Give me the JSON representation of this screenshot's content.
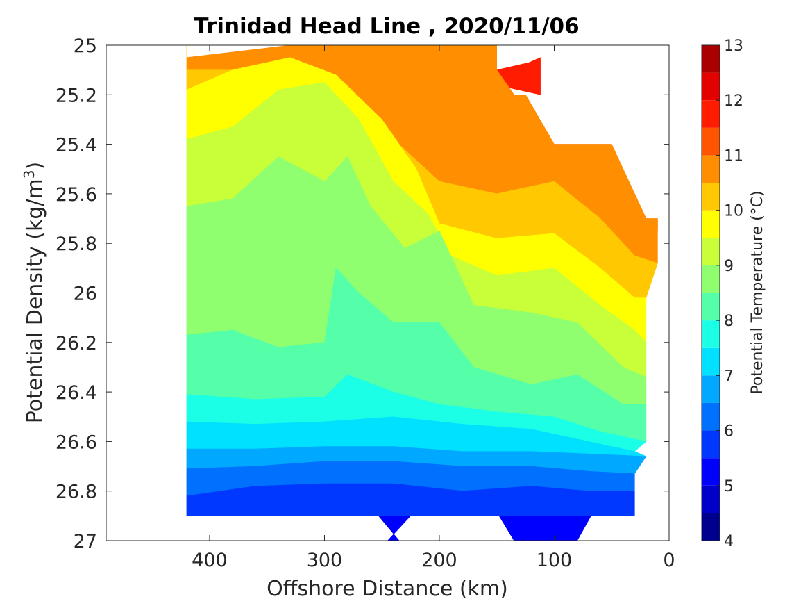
{
  "chart_data": {
    "type": "contour",
    "title": "Trinidad Head Line , 2020/11/06",
    "xlabel": "Offshore Distance (km)",
    "ylabel_main": "Potential Density (kg/m",
    "ylabel_sup": "3",
    "ylabel_close": ")",
    "xlim": [
      490,
      0
    ],
    "ylim": [
      25,
      27
    ],
    "x_direction": "reversed",
    "y_direction": "reversed",
    "xticks": [
      400,
      300,
      200,
      100,
      0
    ],
    "yticks": [
      25,
      25.2,
      25.4,
      25.6,
      25.8,
      26,
      26.2,
      26.4,
      26.6,
      26.8,
      27
    ],
    "xtick_labels": [
      "400",
      "300",
      "200",
      "100",
      "0"
    ],
    "ytick_labels": [
      "25",
      "25.2",
      "25.4",
      "25.6",
      "25.8",
      "26",
      "26.2",
      "26.4",
      "26.6",
      "26.8",
      "27"
    ],
    "grid": false,
    "colorbar": {
      "label": "Potential Temperature (°C)",
      "levels": [
        4,
        4.5,
        5,
        5.5,
        6,
        6.5,
        7,
        7.5,
        8,
        8.5,
        9,
        9.5,
        10,
        10.5,
        11,
        11.5,
        12,
        12.5,
        13
      ],
      "tick_values": [
        4,
        5,
        6,
        7,
        8,
        9,
        10,
        11,
        12,
        13
      ],
      "tick_labels": [
        "4",
        "5",
        "6",
        "7",
        "8",
        "9",
        "10",
        "11",
        "12",
        "13"
      ],
      "colors": [
        "#00008F",
        "#0000C8",
        "#0000FF",
        "#0038FF",
        "#0070FF",
        "#00A8FF",
        "#00E0FF",
        "#1AFFE5",
        "#55FFAA",
        "#8FFF70",
        "#C8FF38",
        "#FFFF00",
        "#FFC800",
        "#FF8F00",
        "#FF5500",
        "#FF1C00",
        "#E30000",
        "#AA0000"
      ]
    },
    "bands": [
      {
        "level_min": 12.0,
        "color": "#E30000",
        "boundary": [
          [
            188,
            25
          ],
          [
            150,
            25
          ],
          [
            150,
            25.1
          ],
          [
            172,
            25.07
          ]
        ]
      },
      {
        "level_min": 11.5,
        "color": "#FF1C00",
        "boundary": [
          [
            205,
            25
          ],
          [
            150,
            25
          ],
          [
            150,
            25.1
          ],
          [
            122,
            25.07
          ],
          [
            112,
            25.05
          ],
          [
            112,
            25.2
          ],
          [
            180,
            25.13
          ]
        ]
      },
      {
        "level_min": 11.0,
        "color": "#FF5500",
        "boundary": [
          [
            258,
            25
          ],
          [
            150,
            25
          ],
          [
            150,
            25.1
          ],
          [
            135,
            25.2
          ],
          [
            125,
            25.2
          ],
          [
            100,
            25.4
          ],
          [
            50,
            25.4
          ],
          [
            20,
            25.7
          ],
          [
            10,
            25.7
          ],
          [
            10,
            25.75
          ],
          [
            30,
            25.75
          ],
          [
            60,
            25.6
          ],
          [
            110,
            25.5
          ],
          [
            160,
            25.4
          ],
          [
            200,
            25.32
          ],
          [
            230,
            25.2
          ]
        ]
      },
      {
        "level_min": 10.5,
        "color": "#FF8F00",
        "boundary": [
          [
            330,
            25
          ],
          [
            420,
            25.05
          ],
          [
            420,
            25.1
          ],
          [
            370,
            25.1
          ],
          [
            320,
            25.15
          ],
          [
            280,
            25.25
          ],
          [
            240,
            25.38
          ],
          [
            200,
            25.55
          ],
          [
            150,
            25.6
          ],
          [
            100,
            25.55
          ],
          [
            60,
            25.7
          ],
          [
            30,
            25.85
          ],
          [
            10,
            25.88
          ],
          [
            10,
            25.7
          ],
          [
            20,
            25.7
          ],
          [
            50,
            25.4
          ],
          [
            100,
            25.4
          ],
          [
            125,
            25.2
          ],
          [
            135,
            25.2
          ],
          [
            150,
            25.1
          ],
          [
            150,
            25
          ],
          [
            258,
            25
          ]
        ]
      },
      {
        "level_min": 10.0,
        "color": "#FFC800",
        "boundary": [
          [
            420,
            25
          ],
          [
            420,
            25.18
          ],
          [
            380,
            25.1
          ],
          [
            330,
            25.05
          ],
          [
            290,
            25.12
          ],
          [
            250,
            25.3
          ],
          [
            220,
            25.5
          ],
          [
            200,
            25.72
          ],
          [
            150,
            25.78
          ],
          [
            100,
            25.76
          ],
          [
            60,
            25.9
          ],
          [
            30,
            26.02
          ],
          [
            20,
            26.02
          ],
          [
            10,
            25.88
          ],
          [
            30,
            25.85
          ],
          [
            60,
            25.7
          ],
          [
            100,
            25.55
          ],
          [
            150,
            25.6
          ],
          [
            200,
            25.55
          ],
          [
            240,
            25.38
          ],
          [
            280,
            25.25
          ],
          [
            320,
            25.15
          ],
          [
            370,
            25.1
          ],
          [
            420,
            25.1
          ]
        ]
      },
      {
        "level_min": 9.5,
        "color": "#FFFF00",
        "boundary": [
          [
            420,
            25.18
          ],
          [
            420,
            25.38
          ],
          [
            380,
            25.33
          ],
          [
            340,
            25.18
          ],
          [
            300,
            25.15
          ],
          [
            270,
            25.3
          ],
          [
            240,
            25.55
          ],
          [
            210,
            25.68
          ],
          [
            190,
            25.85
          ],
          [
            150,
            25.93
          ],
          [
            100,
            25.9
          ],
          [
            60,
            26.05
          ],
          [
            30,
            26.15
          ],
          [
            20,
            26.2
          ],
          [
            20,
            26.02
          ],
          [
            30,
            26.02
          ],
          [
            60,
            25.9
          ],
          [
            100,
            25.76
          ],
          [
            150,
            25.78
          ],
          [
            200,
            25.72
          ],
          [
            220,
            25.5
          ],
          [
            250,
            25.3
          ],
          [
            290,
            25.12
          ],
          [
            330,
            25.05
          ],
          [
            380,
            25.1
          ]
        ]
      },
      {
        "level_min": 9.0,
        "color": "#C8FF38",
        "boundary": [
          [
            420,
            25.38
          ],
          [
            420,
            25.65
          ],
          [
            380,
            25.62
          ],
          [
            340,
            25.45
          ],
          [
            300,
            25.55
          ],
          [
            280,
            25.45
          ],
          [
            260,
            25.65
          ],
          [
            230,
            25.82
          ],
          [
            200,
            25.75
          ],
          [
            170,
            26.05
          ],
          [
            120,
            26.08
          ],
          [
            80,
            26.12
          ],
          [
            40,
            26.3
          ],
          [
            20,
            26.34
          ],
          [
            20,
            26.2
          ],
          [
            30,
            26.15
          ],
          [
            60,
            26.05
          ],
          [
            100,
            25.9
          ],
          [
            150,
            25.93
          ],
          [
            190,
            25.85
          ],
          [
            210,
            25.68
          ],
          [
            240,
            25.55
          ],
          [
            270,
            25.3
          ],
          [
            300,
            25.15
          ],
          [
            340,
            25.18
          ],
          [
            380,
            25.33
          ]
        ]
      },
      {
        "level_min": 8.5,
        "color": "#8FFF70",
        "boundary": [
          [
            420,
            25.65
          ],
          [
            420,
            26.17
          ],
          [
            380,
            26.15
          ],
          [
            340,
            26.22
          ],
          [
            300,
            26.2
          ],
          [
            290,
            25.9
          ],
          [
            270,
            26.0
          ],
          [
            240,
            26.12
          ],
          [
            200,
            26.12
          ],
          [
            170,
            26.3
          ],
          [
            120,
            26.37
          ],
          [
            80,
            26.33
          ],
          [
            40,
            26.45
          ],
          [
            20,
            26.45
          ],
          [
            20,
            26.34
          ],
          [
            40,
            26.3
          ],
          [
            80,
            26.12
          ],
          [
            120,
            26.08
          ],
          [
            170,
            26.05
          ],
          [
            200,
            25.75
          ],
          [
            230,
            25.82
          ],
          [
            260,
            25.65
          ],
          [
            280,
            25.45
          ],
          [
            300,
            25.55
          ],
          [
            340,
            25.45
          ],
          [
            380,
            25.62
          ]
        ]
      },
      {
        "level_min": 8.0,
        "color": "#55FFAA",
        "boundary": [
          [
            420,
            26.17
          ],
          [
            420,
            26.41
          ],
          [
            360,
            26.43
          ],
          [
            300,
            26.42
          ],
          [
            280,
            26.33
          ],
          [
            240,
            26.4
          ],
          [
            200,
            26.45
          ],
          [
            150,
            26.48
          ],
          [
            100,
            26.5
          ],
          [
            60,
            26.56
          ],
          [
            20,
            26.6
          ],
          [
            20,
            26.45
          ],
          [
            40,
            26.45
          ],
          [
            80,
            26.33
          ],
          [
            120,
            26.37
          ],
          [
            170,
            26.3
          ],
          [
            200,
            26.12
          ],
          [
            240,
            26.12
          ],
          [
            270,
            26.0
          ],
          [
            290,
            25.9
          ],
          [
            300,
            26.2
          ],
          [
            340,
            26.22
          ],
          [
            380,
            26.15
          ]
        ]
      },
      {
        "level_min": 7.5,
        "color": "#1AFFE5",
        "boundary": [
          [
            420,
            26.41
          ],
          [
            420,
            26.52
          ],
          [
            360,
            26.53
          ],
          [
            300,
            26.52
          ],
          [
            240,
            26.5
          ],
          [
            180,
            26.53
          ],
          [
            120,
            26.55
          ],
          [
            70,
            26.6
          ],
          [
            30,
            26.64
          ],
          [
            20,
            26.6
          ],
          [
            60,
            26.56
          ],
          [
            100,
            26.5
          ],
          [
            150,
            26.48
          ],
          [
            200,
            26.45
          ],
          [
            240,
            26.4
          ],
          [
            280,
            26.33
          ],
          [
            300,
            26.42
          ],
          [
            360,
            26.43
          ]
        ]
      },
      {
        "level_min": 7.0,
        "color": "#00E0FF",
        "boundary": [
          [
            420,
            26.52
          ],
          [
            420,
            26.63
          ],
          [
            360,
            26.63
          ],
          [
            300,
            26.62
          ],
          [
            240,
            26.62
          ],
          [
            180,
            26.64
          ],
          [
            120,
            26.64
          ],
          [
            70,
            26.65
          ],
          [
            20,
            26.66
          ],
          [
            30,
            26.64
          ],
          [
            70,
            26.6
          ],
          [
            120,
            26.55
          ],
          [
            180,
            26.53
          ],
          [
            240,
            26.5
          ],
          [
            300,
            26.52
          ],
          [
            360,
            26.53
          ]
        ]
      },
      {
        "level_min": 6.5,
        "color": "#00A8FF",
        "boundary": [
          [
            420,
            26.63
          ],
          [
            420,
            26.71
          ],
          [
            360,
            26.7
          ],
          [
            300,
            26.68
          ],
          [
            240,
            26.68
          ],
          [
            180,
            26.7
          ],
          [
            120,
            26.7
          ],
          [
            70,
            26.72
          ],
          [
            30,
            26.73
          ],
          [
            20,
            26.66
          ],
          [
            70,
            26.65
          ],
          [
            120,
            26.64
          ],
          [
            180,
            26.64
          ],
          [
            240,
            26.62
          ],
          [
            300,
            26.62
          ],
          [
            360,
            26.63
          ]
        ]
      },
      {
        "level_min": 6.0,
        "color": "#0070FF",
        "boundary": [
          [
            420,
            26.71
          ],
          [
            420,
            26.82
          ],
          [
            360,
            26.78
          ],
          [
            300,
            26.77
          ],
          [
            240,
            26.77
          ],
          [
            180,
            26.8
          ],
          [
            120,
            26.78
          ],
          [
            70,
            26.8
          ],
          [
            30,
            26.8
          ],
          [
            30,
            26.73
          ],
          [
            70,
            26.72
          ],
          [
            120,
            26.7
          ],
          [
            180,
            26.7
          ],
          [
            240,
            26.68
          ],
          [
            300,
            26.68
          ],
          [
            360,
            26.7
          ]
        ]
      },
      {
        "level_min": 5.5,
        "color": "#0038FF",
        "boundary": [
          [
            420,
            26.82
          ],
          [
            420,
            26.9
          ],
          [
            30,
            26.9
          ],
          [
            30,
            26.8
          ],
          [
            70,
            26.8
          ],
          [
            120,
            26.78
          ],
          [
            180,
            26.8
          ],
          [
            240,
            26.77
          ],
          [
            300,
            26.77
          ],
          [
            360,
            26.78
          ]
        ]
      },
      {
        "level_min": 5.0,
        "color": "#0000FF",
        "boundary": [
          [
            225,
            26.9
          ],
          [
            245,
            27
          ],
          [
            235,
            27
          ],
          [
            253,
            26.9
          ]
        ]
      },
      {
        "level_min": 5.0,
        "color": "#0000FF",
        "boundary": [
          [
            148,
            26.9
          ],
          [
            68,
            26.9
          ],
          [
            80,
            27
          ],
          [
            135,
            27
          ]
        ]
      }
    ]
  }
}
